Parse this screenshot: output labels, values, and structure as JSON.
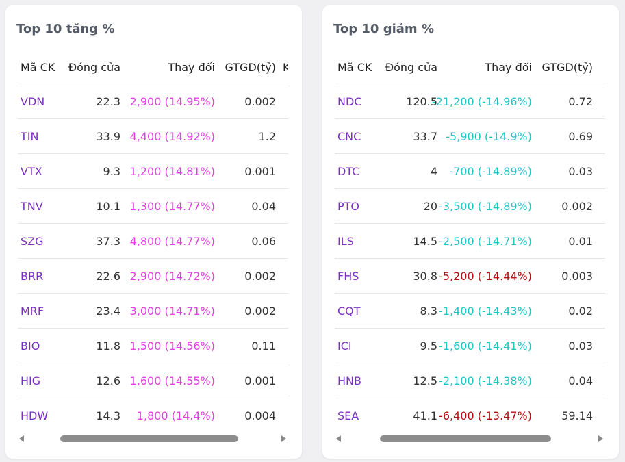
{
  "gainers": {
    "title": "Top 10 tăng %",
    "headers": {
      "code": "Mã CK",
      "close": "Đóng cửa",
      "change": "Thay đổi",
      "value": "GTGD(tỷ)",
      "extra": "K"
    },
    "rows": [
      {
        "code": "VDN",
        "close": "22.3",
        "change": "2,900 (14.95%)",
        "value": "0.002"
      },
      {
        "code": "TIN",
        "close": "33.9",
        "change": "4,400 (14.92%)",
        "value": "1.2"
      },
      {
        "code": "VTX",
        "close": "9.3",
        "change": "1,200 (14.81%)",
        "value": "0.001"
      },
      {
        "code": "TNV",
        "close": "10.1",
        "change": "1,300 (14.77%)",
        "value": "0.04"
      },
      {
        "code": "SZG",
        "close": "37.3",
        "change": "4,800 (14.77%)",
        "value": "0.06"
      },
      {
        "code": "BRR",
        "close": "22.6",
        "change": "2,900 (14.72%)",
        "value": "0.002"
      },
      {
        "code": "MRF",
        "close": "23.4",
        "change": "3,000 (14.71%)",
        "value": "0.002"
      },
      {
        "code": "BIO",
        "close": "11.8",
        "change": "1,500 (14.56%)",
        "value": "0.11"
      },
      {
        "code": "HIG",
        "close": "12.6",
        "change": "1,600 (14.55%)",
        "value": "0.001"
      },
      {
        "code": "HDW",
        "close": "14.3",
        "change": "1,800 (14.4%)",
        "value": "0.004"
      }
    ]
  },
  "losers": {
    "title": "Top 10 giảm %",
    "headers": {
      "code": "Mã CK",
      "close": "Đóng cửa",
      "change": "Thay đổi",
      "value": "GTGD(tỷ)"
    },
    "rows": [
      {
        "code": "NDC",
        "close": "120.5",
        "change": "-21,200 (-14.96%)",
        "value": "0.72",
        "tone": "cyan"
      },
      {
        "code": "CNC",
        "close": "33.7",
        "change": "-5,900 (-14.9%)",
        "value": "0.69",
        "tone": "cyan"
      },
      {
        "code": "DTC",
        "close": "4",
        "change": "-700 (-14.89%)",
        "value": "0.03",
        "tone": "cyan"
      },
      {
        "code": "PTO",
        "close": "20",
        "change": "-3,500 (-14.89%)",
        "value": "0.002",
        "tone": "cyan"
      },
      {
        "code": "ILS",
        "close": "14.5",
        "change": "-2,500 (-14.71%)",
        "value": "0.01",
        "tone": "cyan"
      },
      {
        "code": "FHS",
        "close": "30.8",
        "change": "-5,200 (-14.44%)",
        "value": "0.003",
        "tone": "red"
      },
      {
        "code": "CQT",
        "close": "8.3",
        "change": "-1,400 (-14.43%)",
        "value": "0.02",
        "tone": "cyan"
      },
      {
        "code": "ICI",
        "close": "9.5",
        "change": "-1,600 (-14.41%)",
        "value": "0.03",
        "tone": "cyan"
      },
      {
        "code": "HNB",
        "close": "12.5",
        "change": "-2,100 (-14.38%)",
        "value": "0.04",
        "tone": "cyan"
      },
      {
        "code": "SEA",
        "close": "41.1",
        "change": "-6,400 (-13.47%)",
        "value": "59.14",
        "tone": "red"
      }
    ]
  },
  "colors": {
    "code": "#7b2fbf",
    "gain": "#e040e0",
    "cyan": "#1fc4c4",
    "red": "#b01010"
  },
  "icons": {
    "scroll_left": "arrow-left-icon",
    "scroll_right": "arrow-right-icon"
  }
}
